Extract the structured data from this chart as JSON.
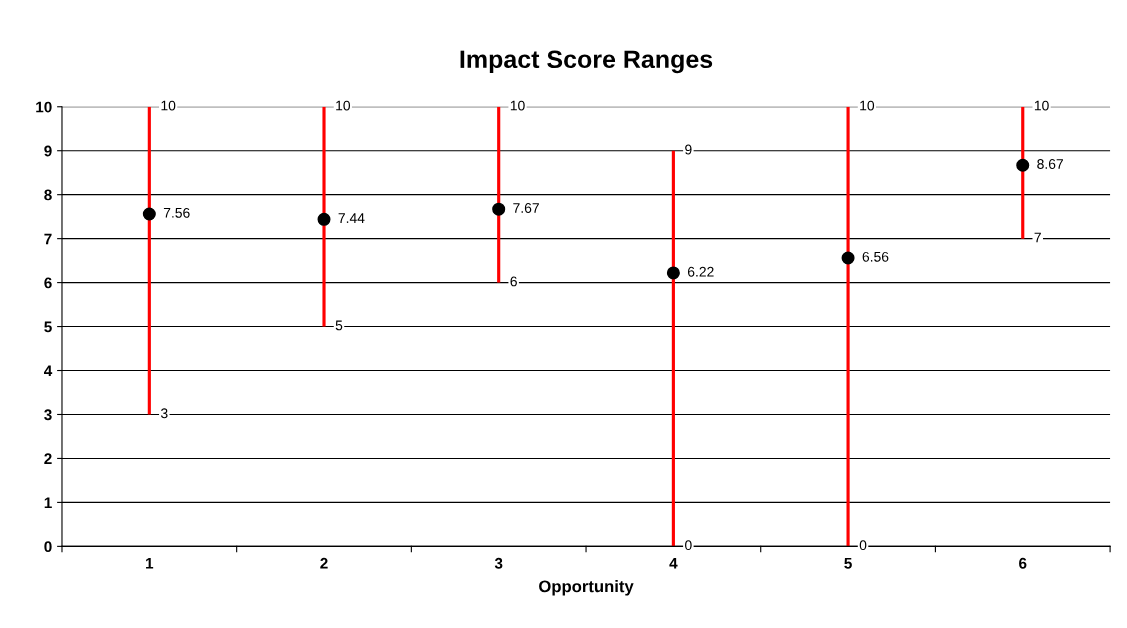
{
  "chart_data": {
    "type": "bar",
    "title": "Impact Score Ranges",
    "xlabel": "Opportunity",
    "categories": [
      "1",
      "2",
      "3",
      "4",
      "5",
      "6"
    ],
    "series": [
      {
        "color": "#ff0000",
        "base": [
          3,
          5,
          6,
          0,
          0,
          7
        ],
        "values": [
          7,
          5,
          4,
          9,
          10,
          3
        ]
      },
      {
        "type": "scatter",
        "color": "#000000",
        "values": [
          7.56,
          7.44,
          7.67,
          6.22,
          6.56,
          8.67
        ],
        "value_labels": [
          "7.56",
          "7.44",
          "7.67",
          "6.22",
          "6.56",
          "8.67"
        ]
      }
    ],
    "annotations": [
      {
        "text": "10",
        "x": "1",
        "y": 10
      },
      {
        "text": "3",
        "x": "1",
        "y": 3
      },
      {
        "text": "10",
        "x": "2",
        "y": 10
      },
      {
        "text": "5",
        "x": "2",
        "y": 5
      },
      {
        "text": "10",
        "x": "3",
        "y": 10
      },
      {
        "text": "6",
        "x": "3",
        "y": 6
      },
      {
        "text": "9",
        "x": "4",
        "y": 9
      },
      {
        "text": "0",
        "x": "4",
        "y": 0
      },
      {
        "text": "10",
        "x": "5",
        "y": 10
      },
      {
        "text": "0",
        "x": "5",
        "y": 0
      },
      {
        "text": "10",
        "x": "6",
        "y": 10
      },
      {
        "text": "7",
        "x": "6",
        "y": 7
      }
    ],
    "ylim": [
      0,
      10
    ],
    "yticks": [
      0,
      1,
      2,
      3,
      4,
      5,
      6,
      7,
      8,
      9,
      10
    ],
    "grid": "y",
    "marker": "circle"
  }
}
